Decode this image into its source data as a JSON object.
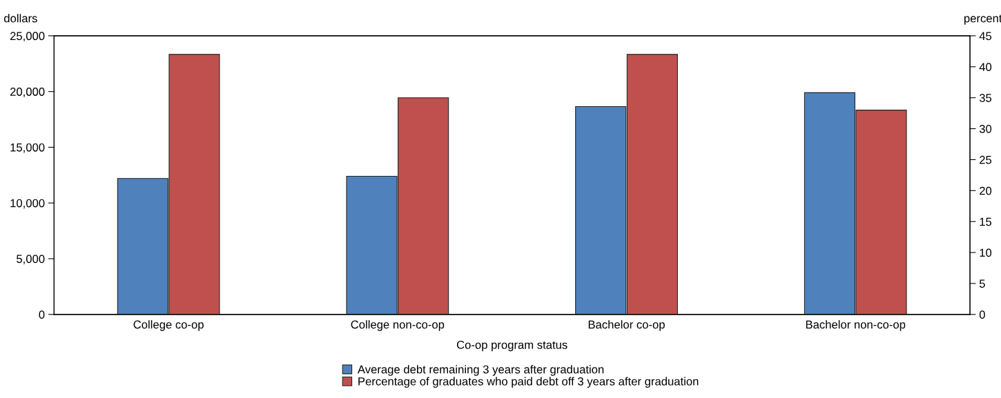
{
  "chart_data": {
    "type": "bar",
    "categories": [
      "College co-op",
      "College non-co-op",
      "Bachelor co-op",
      "Bachelor non-co-op"
    ],
    "xlabel": "Co-op program status",
    "ylabel": "dollars",
    "y2label": "percent",
    "series": [
      {
        "name": "Average debt remaining 3 years after graduation",
        "color": "#4f81bd",
        "values": [
          12200,
          12400,
          18650,
          19900
        ]
      },
      {
        "name": "Percentage of graduates who paid debt off 3 years after graduation",
        "color": "#c0504d",
        "axis": "y2",
        "values": [
          42,
          35,
          42,
          33
        ]
      }
    ],
    "ylim": [
      0,
      25000
    ],
    "yticks": [
      {
        "value": 0,
        "label": "0"
      },
      {
        "value": 5000,
        "label": "5,000"
      },
      {
        "value": 10000,
        "label": "10,000"
      },
      {
        "value": 15000,
        "label": "15,000"
      },
      {
        "value": 20000,
        "label": "20,000"
      },
      {
        "value": 25000,
        "label": "25,000"
      }
    ],
    "y2lim": [
      0,
      45
    ],
    "y2ticks": [
      0,
      5,
      10,
      15,
      20,
      25,
      30,
      35,
      40,
      45
    ],
    "grid": false,
    "legend": "bottom"
  }
}
